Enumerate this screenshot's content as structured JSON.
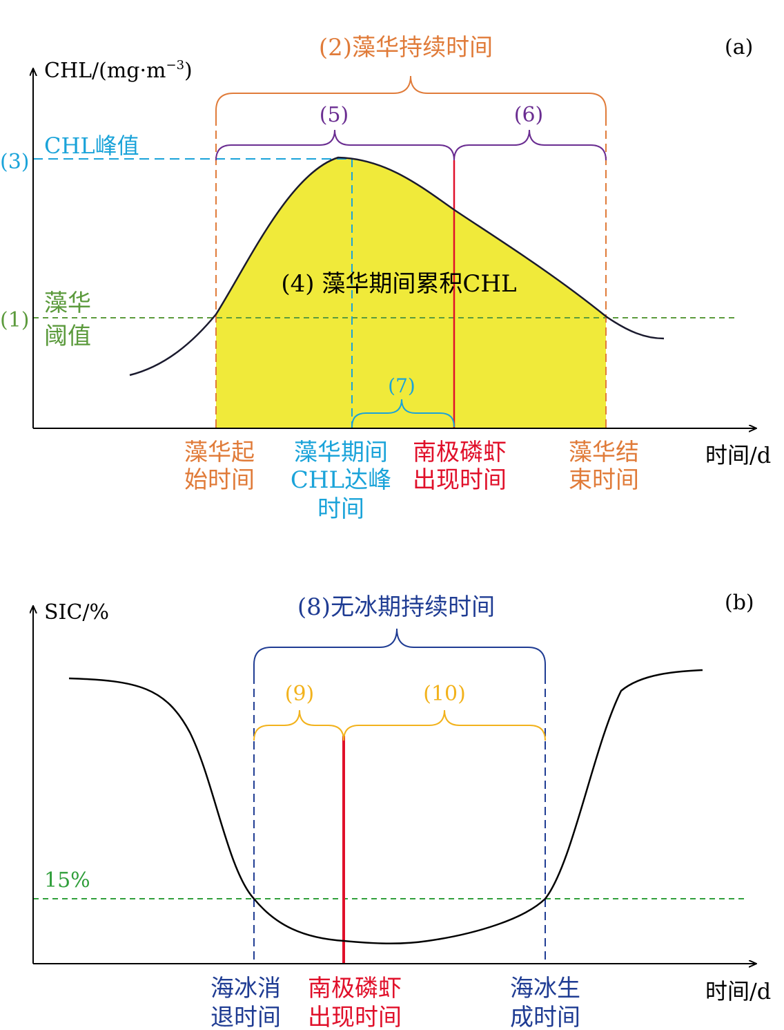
{
  "panel_a": {
    "tag": "(a)",
    "y_axis_label": "CHL/(mg·m",
    "y_axis_sup": "−3",
    "y_axis_close": ")",
    "x_axis_label": "时间/d",
    "bracket_labels": {
      "duration": "(2)藻华持续时间",
      "five": "(5)",
      "six": "(6)",
      "seven": "(7)"
    },
    "peak_label": "CHL峰值",
    "peak_marker": "(3)",
    "threshold_marker": "(1)",
    "threshold_label": [
      "藻华",
      "阈值"
    ],
    "area_label": "(4) 藻华期间累积CHL",
    "event_labels": {
      "bloom_start": [
        "藻华起",
        "始时间"
      ],
      "peak_time": [
        "藻华期间",
        "CHL达峰",
        "时间"
      ],
      "krill": [
        "南极磷虾",
        "出现时间"
      ],
      "bloom_end": [
        "藻华结",
        "束时间"
      ]
    }
  },
  "panel_b": {
    "tag": "(b)",
    "y_axis_label": "SIC/%",
    "x_axis_label": "时间/d",
    "bracket_labels": {
      "eight": "(8)无冰期持续时间",
      "nine": "(9)",
      "ten": "(10)"
    },
    "threshold_label": "15%",
    "event_labels": {
      "ice_retreat": [
        "海冰消",
        "退时间"
      ],
      "krill": [
        "南极磷虾",
        "出现时间"
      ],
      "ice_advance": [
        "海冰生",
        "成时间"
      ]
    }
  },
  "colors": {
    "axis": "#000000",
    "curve": "#1a1a2e",
    "orange": "#e07b39",
    "purple": "#6a2d91",
    "cyan": "#1aa3d9",
    "green": "#5b9a3c",
    "red": "#e0102a",
    "yellow_fill": "#f0ea3a",
    "navy": "#1f3c93",
    "gold": "#f2b21c",
    "green_b": "#2f9e3a"
  }
}
